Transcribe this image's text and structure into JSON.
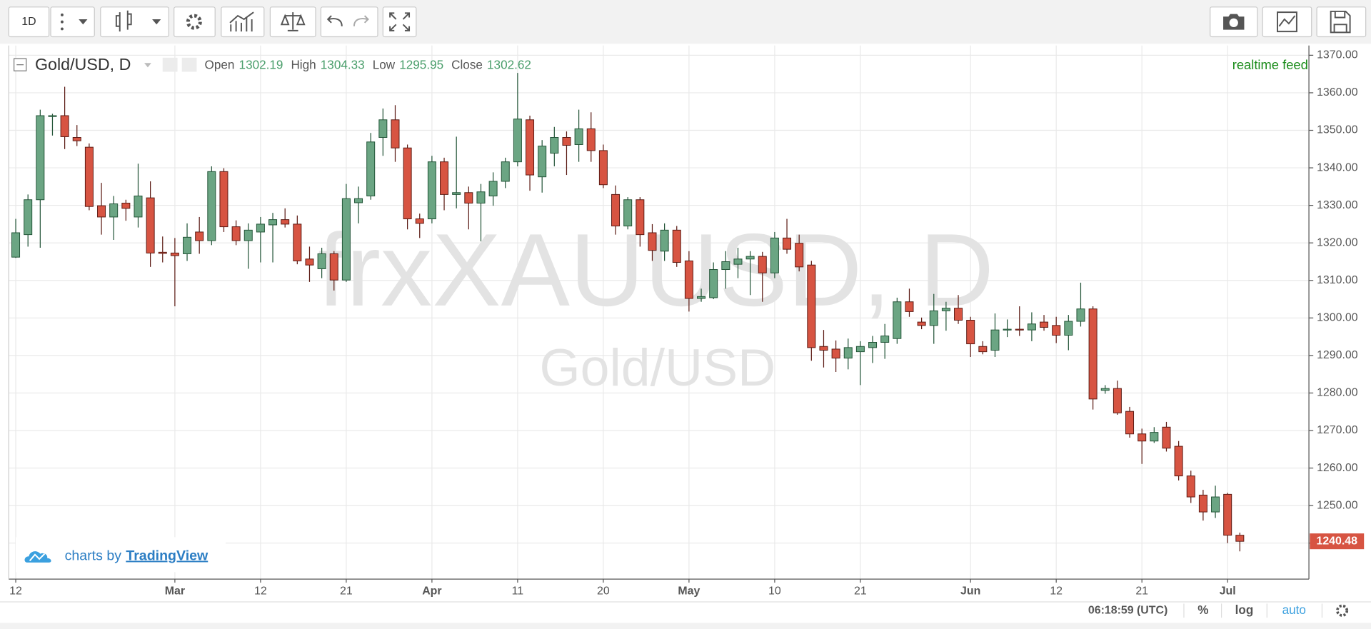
{
  "toolbar": {
    "interval": "1D"
  },
  "chart_data": {
    "type": "candlestick",
    "title": "Gold/USD, D",
    "watermark": "frxXAUUSD, D",
    "watermark_subtitle": "Gold/USD",
    "feed": "realtime feed",
    "ohlc_legend": [
      {
        "label": "Open",
        "value": 1302.19
      },
      {
        "label": "High",
        "value": 1304.33
      },
      {
        "label": "Low",
        "value": 1295.95
      },
      {
        "label": "Close",
        "value": 1302.62
      }
    ],
    "categories": [
      "12",
      null,
      null,
      null,
      null,
      null,
      null,
      null,
      null,
      null,
      null,
      null,
      null,
      "Mar",
      null,
      null,
      null,
      null,
      null,
      null,
      "12",
      null,
      null,
      null,
      null,
      null,
      null,
      "21",
      null,
      null,
      null,
      null,
      null,
      null,
      "Apr",
      null,
      null,
      null,
      null,
      null,
      null,
      "11",
      null,
      null,
      null,
      null,
      null,
      null,
      "20",
      null,
      null,
      null,
      null,
      null,
      null,
      "May",
      null,
      null,
      null,
      null,
      null,
      null,
      "10",
      null,
      null,
      null,
      null,
      null,
      null,
      "21",
      null,
      null,
      null,
      null,
      null,
      null,
      null,
      null,
      "Jun",
      null,
      null,
      null,
      null,
      null,
      null,
      "12",
      null,
      null,
      null,
      null,
      null,
      null,
      "21",
      null,
      null,
      null,
      null,
      null,
      null,
      "Jul",
      null
    ],
    "open": [
      1316.2,
      1322.2,
      1331.5,
      1353.7,
      1353.9,
      1348.1,
      1345.5,
      1329.9,
      1326.9,
      1330.6,
      1326.9,
      1332,
      1317.5,
      1317.3,
      1317.1,
      1322.9,
      1320.6,
      1339,
      1324.3,
      1320.6,
      1322.9,
      1324.8,
      1326.2,
      1325,
      1315.7,
      1313.1,
      1317.1,
      1310.1,
      1330.7,
      1332.5,
      1348.1,
      1352.8,
      1345.3,
      1326.4,
      1326.4,
      1341.6,
      1332.9,
      1333.4,
      1330.6,
      1332.5,
      1336.4,
      1341.6,
      1352.8,
      1337.6,
      1343.9,
      1348.1,
      1346.2,
      1350.4,
      1344.6,
      1332.9,
      1324.5,
      1331.5,
      1322.7,
      1317.8,
      1323.4,
      1315.2,
      1305.2,
      1305.4,
      1312.9,
      1314.3,
      1315.7,
      1316.4,
      1312,
      1321.3,
      1319.9,
      1314.1,
      1292.4,
      1291.7,
      1289.3,
      1291,
      1292.1,
      1293.5,
      1294.5,
      1304.3,
      1298.9,
      1298,
      1301.9,
      1302.6,
      1299.4,
      1292.4,
      1291.4,
      1296.8,
      1297,
      1296.8,
      1298.9,
      1298,
      1295.4,
      1299.1,
      1302.4,
      1280.7,
      1281.2,
      1275.1,
      1269.1,
      1267.2,
      1270.9,
      1265.8,
      1257.9,
      1252.8,
      1248.3,
      1253,
      1242.1
    ],
    "high": [
      1326.4,
      1332.9,
      1355.5,
      1354.4,
      1361.6,
      1351.4,
      1346.5,
      1336,
      1332.5,
      1331.5,
      1341.1,
      1336.4,
      1321.7,
      1321.3,
      1325.2,
      1326.9,
      1340.4,
      1339.9,
      1326,
      1325.2,
      1326.9,
      1328,
      1329.2,
      1327.3,
      1319,
      1318.7,
      1317.8,
      1335.7,
      1335,
      1349.3,
      1355.8,
      1356.7,
      1346.2,
      1327.8,
      1343.2,
      1342.7,
      1348.3,
      1335,
      1335.7,
      1338.8,
      1342.7,
      1365.3,
      1353.9,
      1347.4,
      1350.9,
      1349.7,
      1355.5,
      1354.8,
      1346.2,
      1335.3,
      1332.2,
      1332.2,
      1325,
      1325.2,
      1324.5,
      1317.8,
      1307.8,
      1314.8,
      1317.8,
      1318.7,
      1317.8,
      1317.6,
      1322.9,
      1326.4,
      1322.2,
      1315.2,
      1296.8,
      1294,
      1294.5,
      1293.8,
      1295.2,
      1298.4,
      1305.4,
      1307.8,
      1300.1,
      1306.4,
      1304.3,
      1306.1,
      1300.3,
      1293.8,
      1301.2,
      1299.6,
      1303.1,
      1301.5,
      1300.8,
      1300.3,
      1300.8,
      1309.4,
      1303.1,
      1282.1,
      1283.3,
      1276.3,
      1270.5,
      1270.9,
      1272.3,
      1267.2,
      1259.3,
      1254.2,
      1255.3,
      1253.4,
      1242.8
    ],
    "low": [
      1316,
      1319,
      1318.7,
      1348.6,
      1345,
      1345.8,
      1328.7,
      1322.2,
      1320.8,
      1325.9,
      1324.1,
      1313.6,
      1314.8,
      1303.1,
      1315.2,
      1317.1,
      1319.4,
      1322.9,
      1319.4,
      1313.1,
      1314.8,
      1314.8,
      1324.1,
      1314.3,
      1309.6,
      1310.6,
      1307.3,
      1309.6,
      1325.2,
      1331.5,
      1343.2,
      1341.6,
      1323.6,
      1321.3,
      1325.2,
      1328.7,
      1329.2,
      1323.6,
      1320.4,
      1329.9,
      1334.6,
      1340.4,
      1333.9,
      1333.4,
      1340.4,
      1338.1,
      1341.6,
      1341.6,
      1334.6,
      1322.2,
      1323.6,
      1319,
      1315.2,
      1315.2,
      1313.6,
      1301.7,
      1304.3,
      1305,
      1307.8,
      1310.6,
      1306.1,
      1304.3,
      1310.6,
      1317.1,
      1312.4,
      1288.6,
      1286.8,
      1285.6,
      1286.3,
      1282.1,
      1288,
      1289.1,
      1293.1,
      1300.3,
      1297,
      1293.1,
      1296.6,
      1298.4,
      1289.6,
      1290.3,
      1289.6,
      1294.9,
      1295.2,
      1293.8,
      1296.6,
      1293.3,
      1291.4,
      1297.7,
      1275.6,
      1279.8,
      1274.2,
      1268.1,
      1261.1,
      1266.7,
      1264.4,
      1256.7,
      1250.7,
      1246,
      1246.7,
      1240,
      1237.8
    ],
    "close": [
      1322.7,
      1331.5,
      1353.9,
      1353.9,
      1348.3,
      1347.2,
      1329.7,
      1326.9,
      1330.4,
      1329.2,
      1332.5,
      1317.3,
      1317.2,
      1316.6,
      1321.5,
      1320.6,
      1339,
      1324.3,
      1320.6,
      1323.4,
      1325,
      1326.2,
      1325,
      1315.2,
      1314.1,
      1317.1,
      1310.1,
      1331.8,
      1331.8,
      1346.9,
      1352.8,
      1345.3,
      1326.4,
      1325.2,
      1341.6,
      1332.9,
      1333.4,
      1330.6,
      1333.6,
      1336.4,
      1341.6,
      1353,
      1338.1,
      1345.8,
      1348.1,
      1346,
      1350.4,
      1344.6,
      1335.5,
      1324.5,
      1331.5,
      1322.2,
      1318,
      1323.4,
      1314.8,
      1305.2,
      1305.7,
      1312.9,
      1315,
      1315.7,
      1316.4,
      1312,
      1321.3,
      1318.3,
      1313.6,
      1292.1,
      1291.4,
      1289.3,
      1292.1,
      1292.4,
      1293.5,
      1295.2,
      1304.3,
      1301.7,
      1298,
      1301.9,
      1302.6,
      1299.4,
      1293.1,
      1291,
      1296.8,
      1297,
      1296.8,
      1298.4,
      1297.5,
      1295.4,
      1299.1,
      1302.4,
      1278.4,
      1281.2,
      1274.7,
      1269.1,
      1267.2,
      1269.5,
      1265.3,
      1257.9,
      1252.3,
      1248.3,
      1252.3,
      1242.1,
      1240.48
    ],
    "up_color": "#6ba583",
    "down_color": "#d75442",
    "ylim": [
      1230.4,
      1372.6
    ],
    "yticks": [
      {
        "value": 1240,
        "label": "1240.00"
      },
      {
        "value": 1250,
        "label": "1250.00"
      },
      {
        "value": 1260,
        "label": "1260.00"
      },
      {
        "value": 1270,
        "label": "1270.00"
      },
      {
        "value": 1280,
        "label": "1280.00"
      },
      {
        "value": 1290,
        "label": "1290.00"
      },
      {
        "value": 1300,
        "label": "1300.00"
      },
      {
        "value": 1310,
        "label": "1310.00"
      },
      {
        "value": 1320,
        "label": "1320.00"
      },
      {
        "value": 1330,
        "label": "1330.00"
      },
      {
        "value": 1340,
        "label": "1340.00"
      },
      {
        "value": 1350,
        "label": "1350.00"
      },
      {
        "value": 1360,
        "label": "1360.00"
      },
      {
        "value": 1370,
        "label": "1370.00"
      }
    ],
    "grid": true,
    "log_scale": false,
    "last_price": {
      "value": 1240.48,
      "label": "1240.48"
    }
  },
  "branding": {
    "prefix": "charts by",
    "name": "TradingView"
  },
  "status_bar": {
    "time": "06:18:59 (UTC)",
    "percent": "%",
    "log": "log",
    "auto": "auto"
  }
}
